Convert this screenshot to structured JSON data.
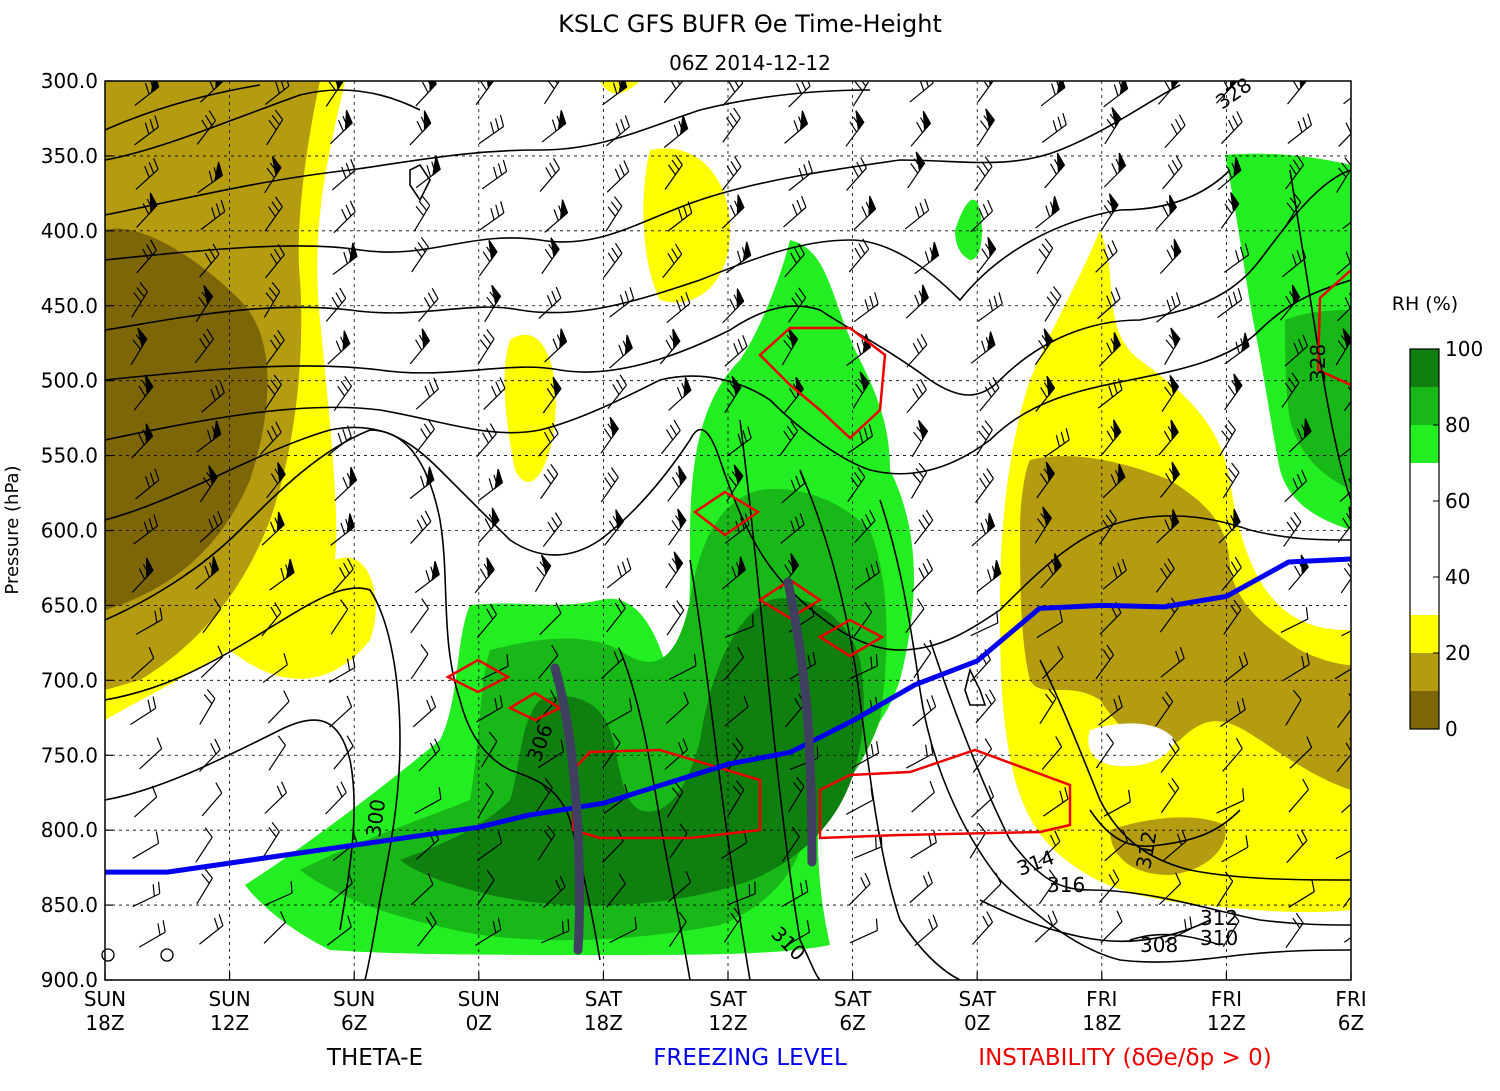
{
  "chart_data": {
    "type": "heatmap",
    "title": "KSLC GFS BUFR Θe Time-Height",
    "subtitle": "06Z 2014-12-12",
    "ylabel": "Pressure (hPa)",
    "y_axis": {
      "reversed": true,
      "ylim": [
        900,
        300
      ],
      "ticks": [
        "300.0",
        "350.0",
        "400.0",
        "450.0",
        "500.0",
        "550.0",
        "600.0",
        "650.0",
        "700.0",
        "750.0",
        "800.0",
        "850.0",
        "900.0"
      ]
    },
    "x_axis": {
      "order": "time decreasing left to right",
      "ticks": [
        {
          "day": "SUN",
          "hour": "18Z"
        },
        {
          "day": "SUN",
          "hour": "12Z"
        },
        {
          "day": "SUN",
          "hour": "6Z"
        },
        {
          "day": "SUN",
          "hour": "0Z"
        },
        {
          "day": "SAT",
          "hour": "18Z"
        },
        {
          "day": "SAT",
          "hour": "12Z"
        },
        {
          "day": "SAT",
          "hour": "6Z"
        },
        {
          "day": "SAT",
          "hour": "0Z"
        },
        {
          "day": "FRI",
          "hour": "18Z"
        },
        {
          "day": "FRI",
          "hour": "12Z"
        },
        {
          "day": "FRI",
          "hour": "6Z"
        }
      ]
    },
    "grid": true,
    "colorbar": {
      "label": "RH (%)",
      "ticks": [
        "0",
        "20",
        "40",
        "60",
        "80",
        "100"
      ],
      "bins": [
        {
          "range": [
            0,
            10
          ],
          "color": "#7d6608"
        },
        {
          "range": [
            10,
            20
          ],
          "color": "#b59b10"
        },
        {
          "range": [
            20,
            30
          ],
          "color": "#ffff00"
        },
        {
          "range": [
            30,
            70
          ],
          "color": "#ffffff"
        },
        {
          "range": [
            70,
            80
          ],
          "color": "#22ee22"
        },
        {
          "range": [
            80,
            90
          ],
          "color": "#18b818"
        },
        {
          "range": [
            90,
            100
          ],
          "color": "#0f7f0f"
        }
      ]
    },
    "freezing_level": {
      "name": "FREEZING LEVEL",
      "color": "#0000ee",
      "points": [
        {
          "t": 0,
          "p": 828
        },
        {
          "t": 0.5,
          "p": 828
        },
        {
          "t": 1,
          "p": 822
        },
        {
          "t": 2,
          "p": 810
        },
        {
          "t": 3,
          "p": 798
        },
        {
          "t": 3.4,
          "p": 790
        },
        {
          "t": 4,
          "p": 782
        },
        {
          "t": 5,
          "p": 756
        },
        {
          "t": 5.5,
          "p": 748
        },
        {
          "t": 6,
          "p": 727
        },
        {
          "t": 6.5,
          "p": 703
        },
        {
          "t": 7,
          "p": 687
        },
        {
          "t": 7.5,
          "p": 652
        },
        {
          "t": 8,
          "p": 650
        },
        {
          "t": 8.5,
          "p": 651
        },
        {
          "t": 9,
          "p": 644
        },
        {
          "t": 9.5,
          "p": 621
        },
        {
          "t": 10,
          "p": 619
        }
      ]
    },
    "theta_e_contour_labels": [
      "328",
      "328",
      "306",
      "300",
      "310",
      "314",
      "316",
      "312",
      "312",
      "310",
      "308"
    ],
    "footer_labels": {
      "theta_e": "THETA-E",
      "freezing": "FREEZING LEVEL",
      "instability_prefix": "INSTABILITY (",
      "instability_math": "δΘe/δp > 0",
      "instability_suffix": ")"
    },
    "colors": {
      "theta_e": "#000000",
      "freezing": "#0000ee",
      "instability": "#ee0000",
      "frontal_marks": "#3f3f5f"
    }
  }
}
